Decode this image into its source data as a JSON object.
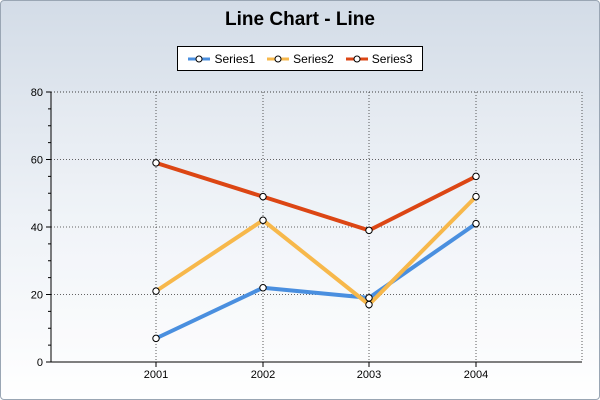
{
  "chart_data": {
    "type": "line",
    "title": "Line Chart - Line",
    "xlabel": "",
    "ylabel": "",
    "categories": [
      "2001",
      "2002",
      "2003",
      "2004"
    ],
    "ylim": [
      0,
      80
    ],
    "yticks": [
      0,
      20,
      40,
      60,
      80
    ],
    "grid": true,
    "legend_position": "top-center",
    "series": [
      {
        "name": "Series1",
        "color": "#4a8fdf",
        "values": [
          7,
          22,
          19,
          41
        ]
      },
      {
        "name": "Series2",
        "color": "#f7b84b",
        "values": [
          21,
          42,
          17,
          49
        ]
      },
      {
        "name": "Series3",
        "color": "#dc4614",
        "values": [
          59,
          49,
          39,
          55
        ]
      }
    ]
  }
}
